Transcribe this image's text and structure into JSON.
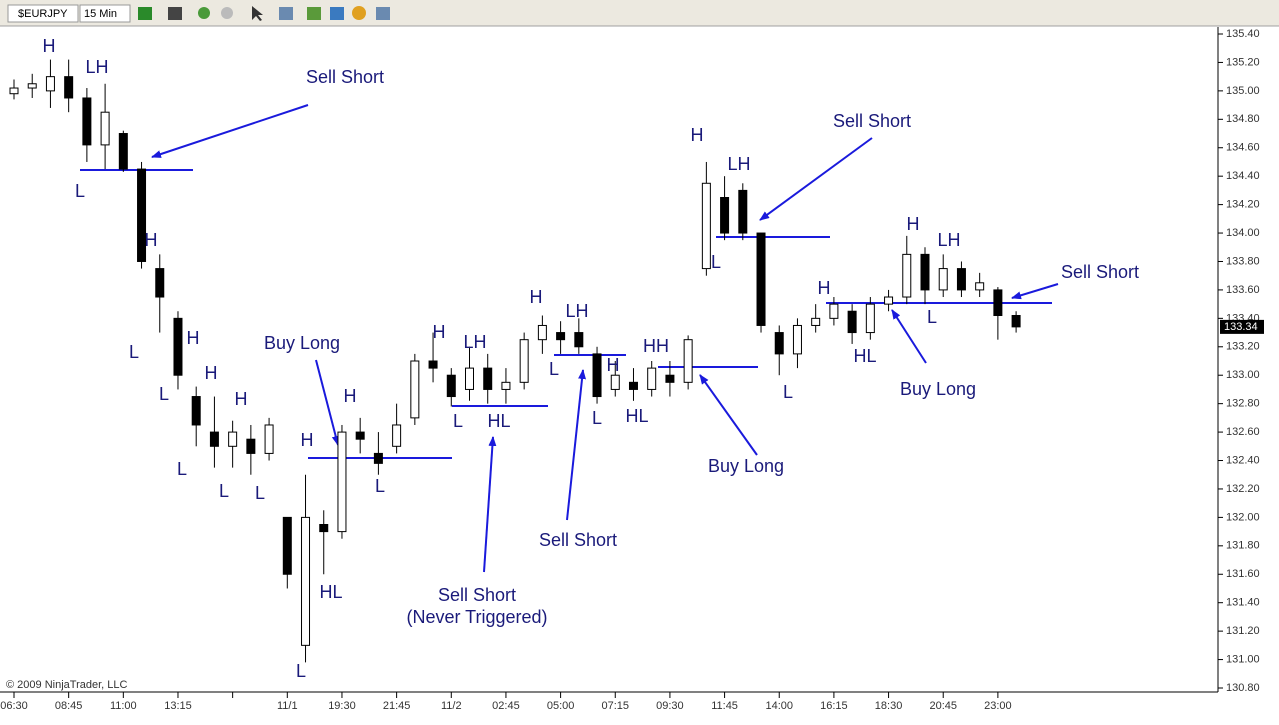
{
  "toolbar": {
    "symbol": "$EURJPY",
    "interval": "15 Min"
  },
  "copyright": "© 2009 NinjaTrader, LLC",
  "chart_data": {
    "type": "candlestick",
    "categories": [
      "06:30",
      null,
      null,
      "08:45",
      null,
      null,
      "11:00",
      null,
      null,
      "13:15",
      null,
      null,
      null,
      null,
      null,
      "11/1",
      null,
      null,
      "19:30",
      null,
      null,
      "21:45",
      null,
      null,
      "11/2",
      null,
      null,
      "02:45",
      null,
      null,
      "05:00",
      null,
      null,
      "07:15",
      null,
      null,
      "09:30",
      null,
      null,
      "11:45",
      null,
      null,
      "14:00",
      null,
      null,
      "16:15",
      null,
      null,
      "18:30",
      null,
      null,
      "20:45",
      null,
      null,
      "23:00",
      null
    ],
    "open": [
      134.98,
      135.02,
      135.0,
      135.1,
      134.95,
      134.62,
      134.7,
      134.45,
      133.75,
      133.4,
      132.85,
      132.6,
      132.5,
      132.55,
      132.45,
      132.0,
      131.1,
      131.95,
      131.9,
      132.6,
      132.45,
      132.5,
      132.7,
      133.1,
      133.0,
      132.9,
      133.05,
      132.9,
      132.95,
      133.25,
      133.3,
      133.3,
      133.15,
      132.9,
      132.95,
      132.9,
      133.0,
      132.95,
      133.75,
      134.25,
      134.3,
      134.0,
      133.3,
      133.15,
      133.35,
      133.4,
      133.45,
      133.3,
      133.5,
      133.55,
      133.85,
      133.6,
      133.75,
      133.6,
      133.6,
      133.42
    ],
    "high": [
      135.08,
      135.12,
      135.22,
      135.22,
      135.02,
      135.05,
      134.72,
      134.5,
      133.85,
      133.45,
      132.92,
      132.85,
      132.68,
      132.65,
      132.7,
      132.0,
      132.3,
      132.05,
      132.65,
      132.7,
      132.6,
      132.8,
      133.15,
      133.3,
      133.05,
      133.2,
      133.15,
      133.05,
      133.3,
      133.42,
      133.38,
      133.4,
      133.2,
      133.1,
      133.05,
      133.1,
      133.1,
      133.28,
      134.5,
      134.4,
      134.35,
      134.0,
      133.35,
      133.4,
      133.5,
      133.55,
      133.5,
      133.55,
      133.6,
      133.98,
      133.9,
      133.85,
      133.8,
      133.72,
      133.62,
      133.45
    ],
    "low": [
      134.94,
      134.95,
      134.88,
      134.85,
      134.5,
      134.45,
      134.43,
      133.75,
      133.3,
      132.9,
      132.5,
      132.35,
      132.35,
      132.3,
      132.4,
      131.5,
      130.98,
      131.6,
      131.85,
      132.45,
      132.3,
      132.45,
      132.65,
      132.95,
      132.78,
      132.82,
      132.8,
      132.8,
      132.9,
      133.15,
      133.15,
      133.15,
      132.8,
      132.85,
      132.82,
      132.85,
      132.85,
      132.9,
      133.7,
      133.95,
      133.95,
      133.3,
      133.0,
      133.05,
      133.3,
      133.35,
      133.22,
      133.25,
      133.45,
      133.5,
      133.5,
      133.55,
      133.55,
      133.55,
      133.25,
      133.3
    ],
    "close": [
      135.02,
      135.05,
      135.1,
      134.95,
      134.62,
      134.85,
      134.45,
      133.8,
      133.55,
      133.0,
      132.65,
      132.5,
      132.6,
      132.45,
      132.65,
      131.6,
      132.0,
      131.9,
      132.6,
      132.55,
      132.38,
      132.65,
      133.1,
      133.05,
      132.85,
      133.05,
      132.9,
      132.95,
      133.25,
      133.35,
      133.25,
      133.2,
      132.85,
      133.0,
      132.9,
      133.05,
      132.95,
      133.25,
      134.35,
      134.0,
      134.0,
      133.35,
      133.15,
      133.35,
      133.4,
      133.5,
      133.3,
      133.5,
      133.55,
      133.85,
      133.6,
      133.75,
      133.6,
      133.65,
      133.42,
      133.34
    ],
    "ylim": [
      130.8,
      135.4
    ],
    "yticks": [
      {
        "value": 130.8,
        "label": "130.80"
      },
      {
        "value": 131.0,
        "label": "131.00"
      },
      {
        "value": 131.2,
        "label": "131.20"
      },
      {
        "value": 131.4,
        "label": "131.40"
      },
      {
        "value": 131.6,
        "label": "131.60"
      },
      {
        "value": 131.8,
        "label": "131.80"
      },
      {
        "value": 132.0,
        "label": "132.00"
      },
      {
        "value": 132.2,
        "label": "132.20"
      },
      {
        "value": 132.4,
        "label": "132.40"
      },
      {
        "value": 132.6,
        "label": "132.60"
      },
      {
        "value": 132.8,
        "label": "132.80"
      },
      {
        "value": 133.0,
        "label": "133.00"
      },
      {
        "value": 133.2,
        "label": "133.20"
      },
      {
        "value": 133.4,
        "label": "133.40"
      },
      {
        "value": 133.6,
        "label": "133.60"
      },
      {
        "value": 133.8,
        "label": "133.80"
      },
      {
        "value": 134.0,
        "label": "134.00"
      },
      {
        "value": 134.2,
        "label": "134.20"
      },
      {
        "value": 134.4,
        "label": "134.40"
      },
      {
        "value": 134.6,
        "label": "134.60"
      },
      {
        "value": 134.8,
        "label": "134.80"
      },
      {
        "value": 135.0,
        "label": "135.00"
      },
      {
        "value": 135.2,
        "label": "135.20"
      },
      {
        "value": 135.4,
        "label": "135.40"
      }
    ],
    "last_price": 133.34,
    "up_color": "#ffffff",
    "down_color": "#000000",
    "annotations": [
      "H",
      "LH",
      "Sell Short",
      "L",
      "H",
      "L",
      "H",
      "L",
      "H",
      "H",
      "L",
      "L",
      "L",
      "Buy Long",
      "H",
      "H",
      "L",
      "HL",
      "L",
      "H",
      "LH",
      "L",
      "HL",
      "Sell Short",
      "(Never Triggered)",
      "H",
      "LH",
      "L",
      "Sell Short",
      "H",
      "L",
      "HL",
      "HH",
      "Buy Long",
      "H",
      "LH",
      "L",
      "Sell Short",
      "L",
      "H",
      "HL",
      "H",
      "LH",
      "L",
      "Buy Long",
      "Sell Short"
    ]
  }
}
